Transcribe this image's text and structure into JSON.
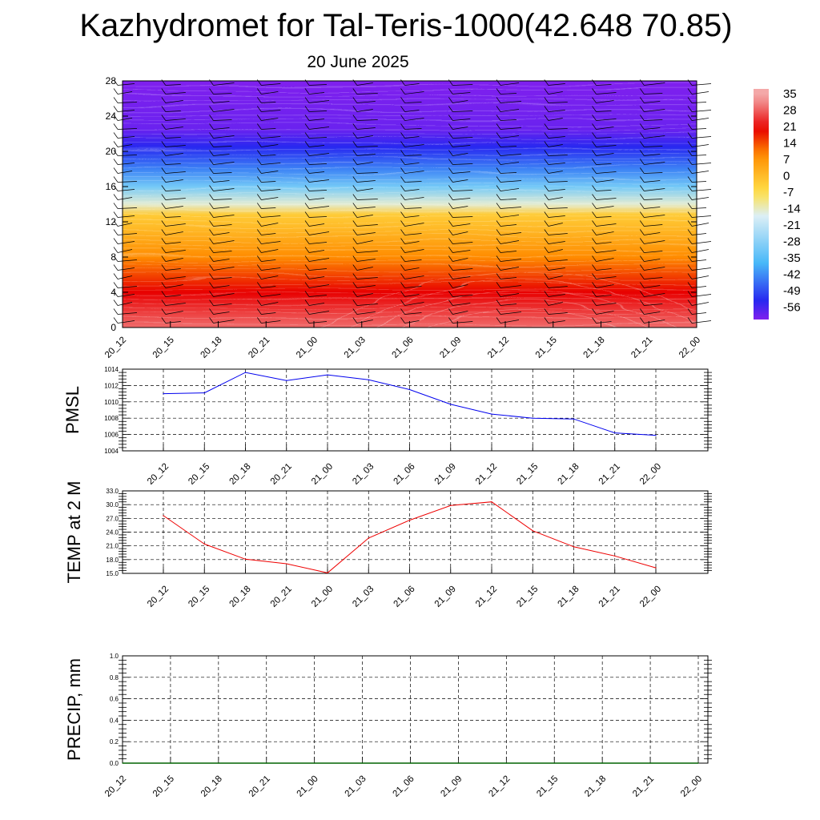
{
  "header": {
    "title": "Kazhydromet for Tal-Teris-1000(42.648 70.85)",
    "subtitle": "20 June 2025"
  },
  "chart_data": [
    {
      "type": "heatmap",
      "name": "vertical cross-section (temperature shading with wind barbs)",
      "x_ticks": [
        "20_12",
        "20_15",
        "20_18",
        "20_21",
        "21_00",
        "21_03",
        "21_06",
        "21_09",
        "21_12",
        "21_15",
        "21_18",
        "21_21",
        "22_00"
      ],
      "y_ticks": [
        0,
        4,
        8,
        12,
        16,
        20,
        24,
        28
      ],
      "ylim": [
        0,
        28
      ],
      "colorbar_labels": [
        35,
        28,
        21,
        14,
        7,
        0,
        -7,
        -14,
        -21,
        -28,
        -35,
        -42,
        -49,
        -56
      ],
      "colors": {
        "purple": "#8020ee",
        "blue": "#2828f0",
        "light_blue": "#48b8f8",
        "pale": "#dceff6",
        "yellow": "#ffe048",
        "orange": "#ff8c00",
        "red": "#e80000",
        "pink": "#f4a8a8"
      },
      "temperature_profile": [
        {
          "height": 0,
          "temp": 30
        },
        {
          "height": 4,
          "temp": 21
        },
        {
          "height": 8,
          "temp": 10
        },
        {
          "height": 11,
          "temp": 2
        },
        {
          "height": 12.8,
          "temp": -2
        },
        {
          "height": 14,
          "temp": -14
        },
        {
          "height": 16,
          "temp": -30
        },
        {
          "height": 18,
          "temp": -42
        },
        {
          "height": 20.5,
          "temp": -52
        },
        {
          "height": 22.5,
          "temp": -58
        },
        {
          "height": 28,
          "temp": -60
        }
      ],
      "grid": false
    },
    {
      "type": "line",
      "ylabel": "PMSL",
      "categories": [
        "20_12",
        "20_15",
        "20_18",
        "20_21",
        "21_00",
        "21_03",
        "21_06",
        "21_09",
        "21_12",
        "21_15",
        "21_18",
        "21_21",
        "22_00"
      ],
      "y_ticks": [
        1004,
        1006,
        1008,
        1010,
        1012,
        1014
      ],
      "ylim": [
        1004,
        1014
      ],
      "series": [
        {
          "values": [
            1011.0,
            1011.1,
            1013.6,
            1012.6,
            1013.3,
            1012.7,
            1011.5,
            1009.7,
            1008.5,
            1008.0,
            1007.9,
            1006.2,
            1005.9
          ],
          "color": "#0000ee"
        }
      ],
      "grid": true
    },
    {
      "type": "line",
      "ylabel": "TEMP at 2 M",
      "categories": [
        "20_12",
        "20_15",
        "20_18",
        "20_21",
        "21_00",
        "21_03",
        "21_06",
        "21_09",
        "21_12",
        "21_15",
        "21_18",
        "21_21",
        "22_00"
      ],
      "y_ticks": [
        "15.0",
        "18.0",
        "21.0",
        "24.0",
        "27.0",
        "30.0",
        "33.0"
      ],
      "ylim": [
        15,
        33
      ],
      "series": [
        {
          "values": [
            27.6,
            21.4,
            18.1,
            17.1,
            15.1,
            22.7,
            26.6,
            29.8,
            30.6,
            24.3,
            20.8,
            18.8,
            16.2
          ],
          "color": "#ee0000"
        }
      ],
      "grid": true
    },
    {
      "type": "line",
      "ylabel": "PRECIP, mm",
      "categories": [
        "20_12",
        "20_15",
        "20_18",
        "20_21",
        "21_00",
        "21_03",
        "21_06",
        "21_09",
        "21_12",
        "21_15",
        "21_18",
        "21_21",
        "22_00"
      ],
      "y_ticks": [
        "0.0",
        "0.2",
        "0.4",
        "0.6",
        "0.8",
        "1.0"
      ],
      "ylim": [
        0,
        1
      ],
      "series": [
        {
          "values": [
            0,
            0,
            0,
            0,
            0,
            0,
            0,
            0,
            0,
            0,
            0,
            0,
            0
          ],
          "color": "#006400"
        }
      ],
      "grid": true
    }
  ]
}
